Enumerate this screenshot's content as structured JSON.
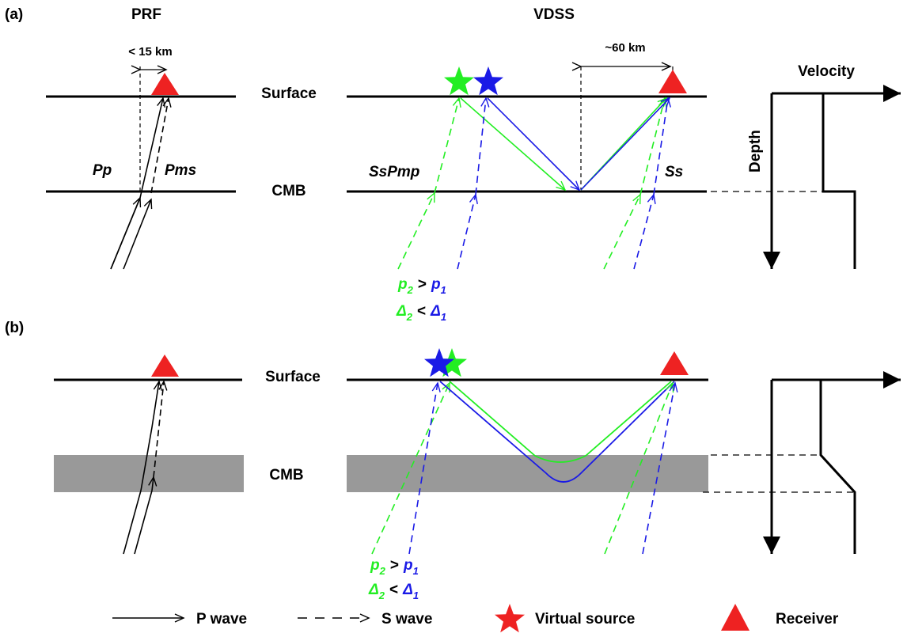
{
  "colors": {
    "green": "#22ee22",
    "blue": "#1a1ae6",
    "red": "#ee2222",
    "gray": "#999999",
    "black": "#000000"
  },
  "panel_a": {
    "label": "(a)",
    "prf_title": "PRF",
    "vdss_title": "VDSS",
    "prf_distance": "< 15 km",
    "vdss_distance": "~60 km",
    "surface_label": "Surface",
    "cmb_label": "CMB",
    "phase_pp": "Pp",
    "phase_pms": "Pms",
    "phase_sspmp": "SsPmp",
    "phase_ss": "Ss",
    "velocity_label": "Velocity",
    "depth_label": "Depth",
    "p_label": "p",
    "delta_label": "Δ",
    "sub_2": "2",
    "sub_1": "1",
    "gt": ">",
    "lt": "<"
  },
  "panel_b": {
    "label": "(b)",
    "surface_label": "Surface",
    "cmb_label": "CMB",
    "p_label": "p",
    "delta_label": "Δ",
    "sub_2": "2",
    "sub_1": "1",
    "gt": ">",
    "lt": "<"
  },
  "legend": {
    "p_wave": "P wave",
    "s_wave": "S wave",
    "virtual_source": "Virtual source",
    "receiver": "Receiver"
  },
  "icons": {
    "virtual_source": "star-icon",
    "receiver": "triangle-icon"
  }
}
